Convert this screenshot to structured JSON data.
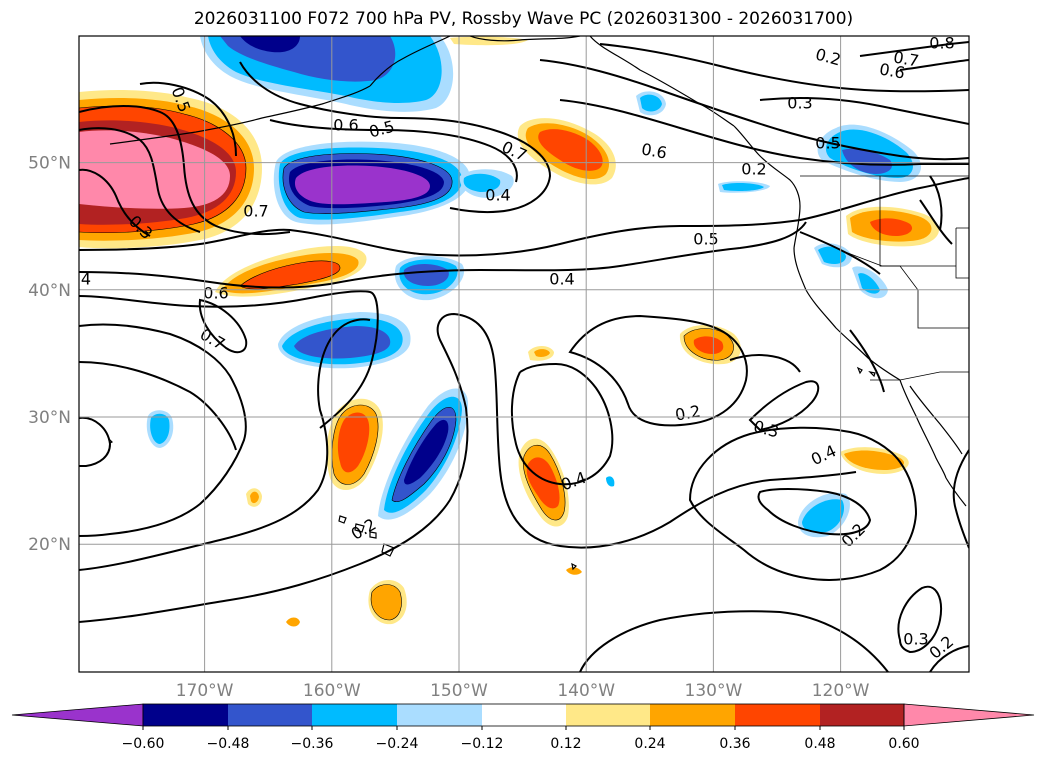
{
  "title": "2026031100 F072 700 hPa PV, Rossby Wave PC (2026031300 - 2026031700)",
  "latitudes": [
    {
      "value": 20,
      "label": "20°N"
    },
    {
      "value": 30,
      "label": "30°N"
    },
    {
      "value": 40,
      "label": "40°N"
    },
    {
      "value": 50,
      "label": "50°N"
    }
  ],
  "longitudes": [
    {
      "value": -170,
      "label": "170°W"
    },
    {
      "value": -160,
      "label": "160°W"
    },
    {
      "value": -150,
      "label": "150°W"
    },
    {
      "value": -140,
      "label": "140°W"
    },
    {
      "value": -130,
      "label": "130°W"
    },
    {
      "value": -120,
      "label": "120°W"
    }
  ],
  "colorbar": {
    "colors": [
      "#9a33cc",
      "#00008b",
      "#3355cc",
      "#00bbff",
      "#aaddff",
      "#ffffff",
      "#ffe888",
      "#ffa500",
      "#ff4500",
      "#b22222",
      "#ff88aa"
    ],
    "ticks": [
      "−0.60",
      "−0.48",
      "−0.36",
      "−0.24",
      "−0.12",
      "0.12",
      "0.24",
      "0.36",
      "0.48",
      "0.60"
    ]
  },
  "contour_labels": [
    "0.5",
    "0.8",
    "0.7",
    "0.6",
    "0.2",
    "0.3",
    "0.5",
    "0.7",
    "0.6",
    "0.5",
    "0.6",
    "0.7",
    "0.4",
    "0.3",
    "0.2",
    "4",
    "0.5",
    "0.4",
    "0.6",
    "0.7",
    "0.2",
    "0.2",
    "0.3",
    "0.4",
    "0.4",
    "0.2",
    "0.3",
    "0.2"
  ]
}
